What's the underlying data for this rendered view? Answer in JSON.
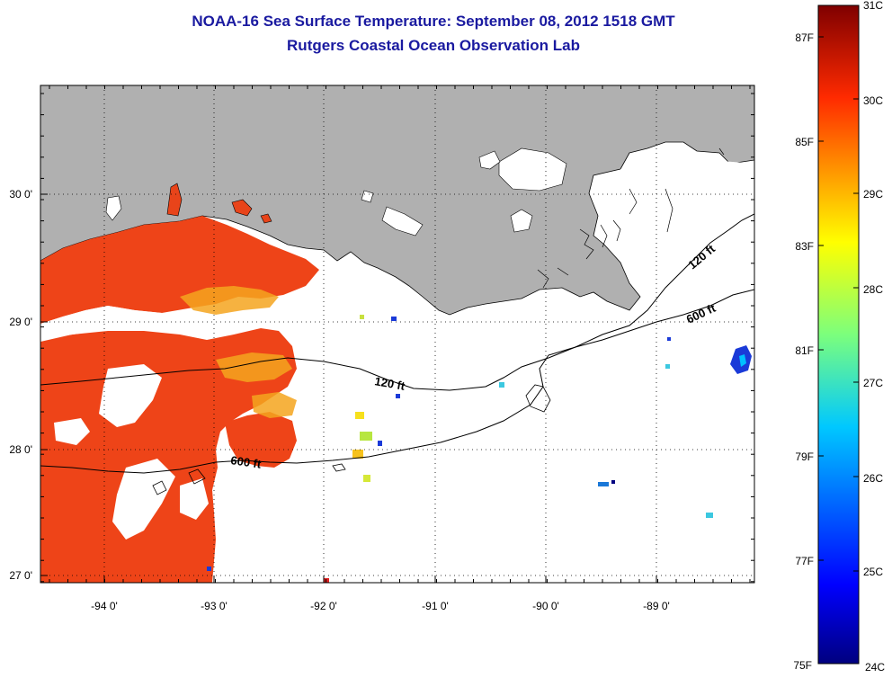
{
  "header": {
    "title": "NOAA-16 Sea Surface Temperature:  September 08, 2012 1518 GMT",
    "subtitle": "Rutgers Coastal Ocean Observation Lab"
  },
  "map": {
    "lon_labels": [
      "-94 0'",
      "-93 0'",
      "-92 0'",
      "-91 0'",
      "-90 0'",
      "-89 0'"
    ],
    "lat_labels": [
      "30 0'",
      "29 0'",
      "28 0'",
      "27 0'"
    ],
    "contour_labels": [
      "120 ft",
      "120 ft",
      "600 ft",
      "600 ft"
    ],
    "colors": {
      "land": "#b0b0b0",
      "warm": "#ee4418",
      "cloud": "#ffffff"
    }
  },
  "colorbar": {
    "fahrenheit_labels": [
      "87F",
      "85F",
      "83F",
      "81F",
      "79F",
      "77F",
      "75F"
    ],
    "celsius_labels": [
      "31C",
      "30C",
      "29C",
      "28C",
      "27C",
      "26C",
      "25C",
      "24C"
    ]
  }
}
